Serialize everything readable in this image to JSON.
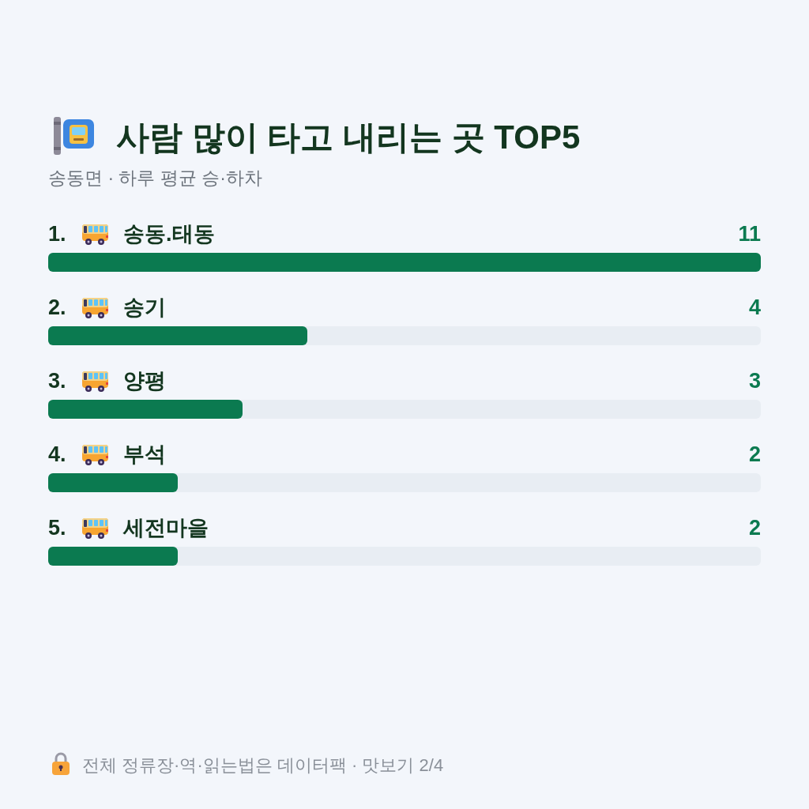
{
  "chart_data": {
    "type": "bar",
    "orientation": "horizontal",
    "title": "사람 많이 타고 내리는 곳 TOP5",
    "subtitle": "송동면 · 하루 평균 승·하차",
    "categories": [
      "1. 송동.태동",
      "2. 송기",
      "3. 양평",
      "4. 부석",
      "5. 세전마을"
    ],
    "values": [
      11,
      4,
      3,
      2,
      2
    ],
    "color": "#0b7a50",
    "data_labels": true,
    "annotations": [
      "전체 정류장·역·읽는법은 데이터팩 · 맛보기 2/4"
    ]
  }
}
